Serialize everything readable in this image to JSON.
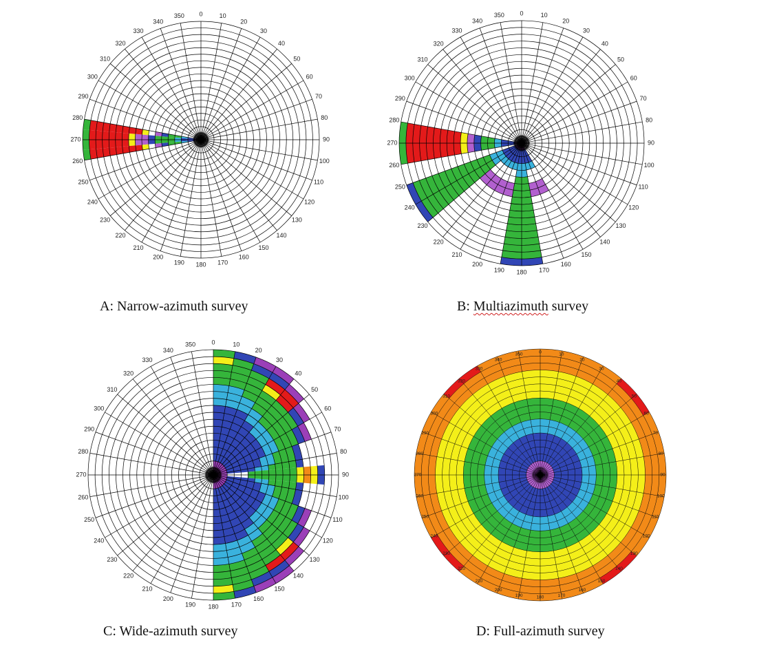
{
  "colors": {
    "grid": "#000000",
    "background": "#ffffff",
    "purple": "#9b3fb8",
    "violet": "#b260cf",
    "blue": "#3146b5",
    "cyan": "#3ab2dd",
    "green": "#35b53b",
    "yellow": "#f4ef19",
    "orange": "#f28a18",
    "red": "#e31a1a"
  },
  "captions": {
    "a": "A: Narrow-azimuth survey",
    "b_prefix": "B: ",
    "b_word": "Multiazimuth",
    "b_suffix": " survey",
    "c": "C: Wide-azimuth survey",
    "d": "D: Full-azimuth survey"
  },
  "azimuth_labels": [
    "0",
    "10",
    "20",
    "30",
    "40",
    "50",
    "60",
    "70",
    "80",
    "90",
    "100",
    "110",
    "120",
    "130",
    "140",
    "150",
    "160",
    "170",
    "180",
    "190",
    "200",
    "210",
    "220",
    "230",
    "240",
    "250",
    "260",
    "270",
    "280",
    "290",
    "300",
    "310",
    "320",
    "330",
    "340",
    "350"
  ],
  "diagrams": {
    "a": {
      "rings": 18,
      "wedges": [
        {
          "az_start": 265,
          "az_end": 275,
          "bins": [
            "purple",
            "blue",
            "blue",
            "cyan",
            "green",
            "green",
            "green",
            "blue",
            "violet",
            "violet",
            "yellow",
            "red",
            "red",
            "red",
            "red",
            "red",
            "red",
            "green"
          ]
        },
        {
          "az_start": 275,
          "az_end": 280,
          "bins": [
            "purple",
            "blue",
            "cyan",
            "green",
            "green",
            "blue",
            "violet",
            "",
            "yellow",
            "red",
            "red",
            "red",
            "red",
            "red",
            "red",
            "red",
            "red",
            "green"
          ]
        },
        {
          "az_start": 260,
          "az_end": 265,
          "bins": [
            "purple",
            "blue",
            "cyan",
            "green",
            "green",
            "blue",
            "violet",
            "",
            "yellow",
            "red",
            "red",
            "red",
            "red",
            "red",
            "red",
            "red",
            "red",
            "green"
          ]
        }
      ]
    },
    "b": {
      "rings": 18,
      "wedges": [
        {
          "az_start": 260,
          "az_end": 280,
          "bins": [
            "purple",
            "blue",
            "blue",
            "cyan",
            "green",
            "green",
            "blue",
            "violet",
            "yellow",
            "red",
            "red",
            "red",
            "red",
            "red",
            "red",
            "red",
            "red",
            "green"
          ]
        },
        {
          "az_start": 230,
          "az_end": 250,
          "bins": [
            "purple",
            "blue",
            "blue",
            "cyan",
            "cyan",
            "green",
            "green",
            "green",
            "green",
            "green",
            "green",
            "green",
            "green",
            "green",
            "green",
            "green",
            "green",
            "blue"
          ]
        },
        {
          "az_start": 170,
          "az_end": 190,
          "bins": [
            "purple",
            "blue",
            "blue",
            "cyan",
            "cyan",
            "green",
            "green",
            "green",
            "green",
            "green",
            "green",
            "green",
            "green",
            "green",
            "green",
            "green",
            "green",
            "blue"
          ]
        },
        {
          "az_start": 150,
          "az_end": 170,
          "bins": [
            "purple",
            "blue",
            "blue",
            "cyan",
            "",
            "",
            "violet",
            "violet"
          ]
        },
        {
          "az_start": 190,
          "az_end": 230,
          "bins": [
            "purple",
            "blue",
            "blue",
            "cyan",
            "",
            "",
            "violet",
            "violet"
          ]
        }
      ]
    },
    "c": {
      "rings": 18,
      "wedges": [
        {
          "az_start": 0,
          "az_end": 10,
          "bins": [
            "purple",
            "purple",
            "blue",
            "blue",
            "blue",
            "blue",
            "blue",
            "blue",
            "blue",
            "blue",
            "cyan",
            "cyan",
            "cyan",
            "green",
            "green",
            "green",
            "yellow",
            "green"
          ]
        },
        {
          "az_start": 10,
          "az_end": 20,
          "bins": [
            "purple",
            "purple",
            "blue",
            "blue",
            "blue",
            "blue",
            "blue",
            "blue",
            "blue",
            "blue",
            "cyan",
            "cyan",
            "cyan",
            "green",
            "green",
            "green",
            "green",
            "blue"
          ]
        },
        {
          "az_start": 20,
          "az_end": 30,
          "bins": [
            "purple",
            "purple",
            "blue",
            "blue",
            "blue",
            "blue",
            "blue",
            "blue",
            "blue",
            "blue",
            "cyan",
            "cyan",
            "green",
            "green",
            "green",
            "green",
            "blue",
            "purple"
          ]
        },
        {
          "az_start": 30,
          "az_end": 40,
          "bins": [
            "purple",
            "purple",
            "blue",
            "blue",
            "blue",
            "blue",
            "blue",
            "blue",
            "blue",
            "cyan",
            "cyan",
            "green",
            "green",
            "green",
            "yellow",
            "red",
            "blue",
            "purple"
          ]
        },
        {
          "az_start": 40,
          "az_end": 50,
          "bins": [
            "purple",
            "purple",
            "blue",
            "blue",
            "blue",
            "blue",
            "blue",
            "blue",
            "cyan",
            "cyan",
            "green",
            "green",
            "green",
            "green",
            "red",
            "red",
            "purple"
          ]
        },
        {
          "az_start": 50,
          "az_end": 60,
          "bins": [
            "purple",
            "purple",
            "blue",
            "blue",
            "blue",
            "blue",
            "blue",
            "blue",
            "cyan",
            "cyan",
            "green",
            "green",
            "green",
            "green",
            "blue",
            "purple"
          ]
        },
        {
          "az_start": 60,
          "az_end": 70,
          "bins": [
            "purple",
            "purple",
            "blue",
            "blue",
            "blue",
            "blue",
            "blue",
            "blue",
            "cyan",
            "cyan",
            "green",
            "green",
            "green",
            "blue",
            "purple"
          ]
        },
        {
          "az_start": 70,
          "az_end": 80,
          "bins": [
            "purple",
            "purple",
            "blue",
            "blue",
            "blue",
            "blue",
            "blue",
            "cyan",
            "cyan",
            "green",
            "green",
            "green",
            "blue"
          ]
        },
        {
          "az_start": 80,
          "az_end": 85,
          "bins": [
            "purple",
            "purple",
            "blue",
            "blue",
            "blue",
            "blue",
            "cyan",
            "cyan",
            "green",
            "green",
            "green",
            "green",
            "blue"
          ]
        },
        {
          "az_start": 85,
          "az_end": 95,
          "bins": [
            "purple",
            "purple",
            "",
            "",
            "",
            "green",
            "green",
            "green",
            "green",
            "green",
            "green",
            "green",
            "yellow",
            "orange",
            "yellow",
            "blue"
          ]
        },
        {
          "az_start": 95,
          "az_end": 100,
          "bins": [
            "purple",
            "purple",
            "blue",
            "blue",
            "blue",
            "blue",
            "cyan",
            "cyan",
            "green",
            "green",
            "green",
            "green",
            "blue"
          ]
        },
        {
          "az_start": 100,
          "az_end": 110,
          "bins": [
            "purple",
            "purple",
            "blue",
            "blue",
            "blue",
            "blue",
            "blue",
            "cyan",
            "cyan",
            "green",
            "green",
            "green",
            "blue"
          ]
        },
        {
          "az_start": 110,
          "az_end": 120,
          "bins": [
            "purple",
            "purple",
            "blue",
            "blue",
            "blue",
            "blue",
            "blue",
            "blue",
            "cyan",
            "cyan",
            "green",
            "green",
            "green",
            "blue",
            "purple"
          ]
        },
        {
          "az_start": 120,
          "az_end": 130,
          "bins": [
            "purple",
            "purple",
            "blue",
            "blue",
            "blue",
            "blue",
            "blue",
            "blue",
            "cyan",
            "cyan",
            "green",
            "green",
            "green",
            "green",
            "blue",
            "purple"
          ]
        },
        {
          "az_start": 130,
          "az_end": 140,
          "bins": [
            "purple",
            "purple",
            "blue",
            "blue",
            "blue",
            "blue",
            "blue",
            "blue",
            "cyan",
            "cyan",
            "green",
            "green",
            "green",
            "green",
            "yellow",
            "red",
            "purple"
          ]
        },
        {
          "az_start": 140,
          "az_end": 150,
          "bins": [
            "purple",
            "purple",
            "blue",
            "blue",
            "blue",
            "blue",
            "blue",
            "blue",
            "blue",
            "cyan",
            "cyan",
            "green",
            "green",
            "green",
            "green",
            "red",
            "blue",
            "purple"
          ]
        },
        {
          "az_start": 150,
          "az_end": 160,
          "bins": [
            "purple",
            "purple",
            "blue",
            "blue",
            "blue",
            "blue",
            "blue",
            "blue",
            "blue",
            "blue",
            "cyan",
            "cyan",
            "green",
            "green",
            "green",
            "green",
            "blue",
            "purple"
          ]
        },
        {
          "az_start": 160,
          "az_end": 170,
          "bins": [
            "purple",
            "purple",
            "blue",
            "blue",
            "blue",
            "blue",
            "blue",
            "blue",
            "blue",
            "blue",
            "cyan",
            "cyan",
            "cyan",
            "green",
            "green",
            "green",
            "green",
            "blue"
          ]
        },
        {
          "az_start": 170,
          "az_end": 180,
          "bins": [
            "purple",
            "purple",
            "blue",
            "blue",
            "blue",
            "blue",
            "blue",
            "blue",
            "blue",
            "blue",
            "cyan",
            "cyan",
            "cyan",
            "green",
            "green",
            "green",
            "yellow",
            "green"
          ]
        }
      ]
    },
    "d": {
      "rings": 18,
      "ring_colors": [
        "purple",
        "violet",
        "blue",
        "blue",
        "blue",
        "blue",
        "cyan",
        "cyan",
        "green",
        "green",
        "green",
        "yellow",
        "yellow",
        "yellow",
        "yellow",
        "orange",
        "orange",
        "red"
      ],
      "hot_sectors": [
        40,
        50,
        130,
        140,
        220,
        230,
        310,
        320
      ]
    }
  }
}
